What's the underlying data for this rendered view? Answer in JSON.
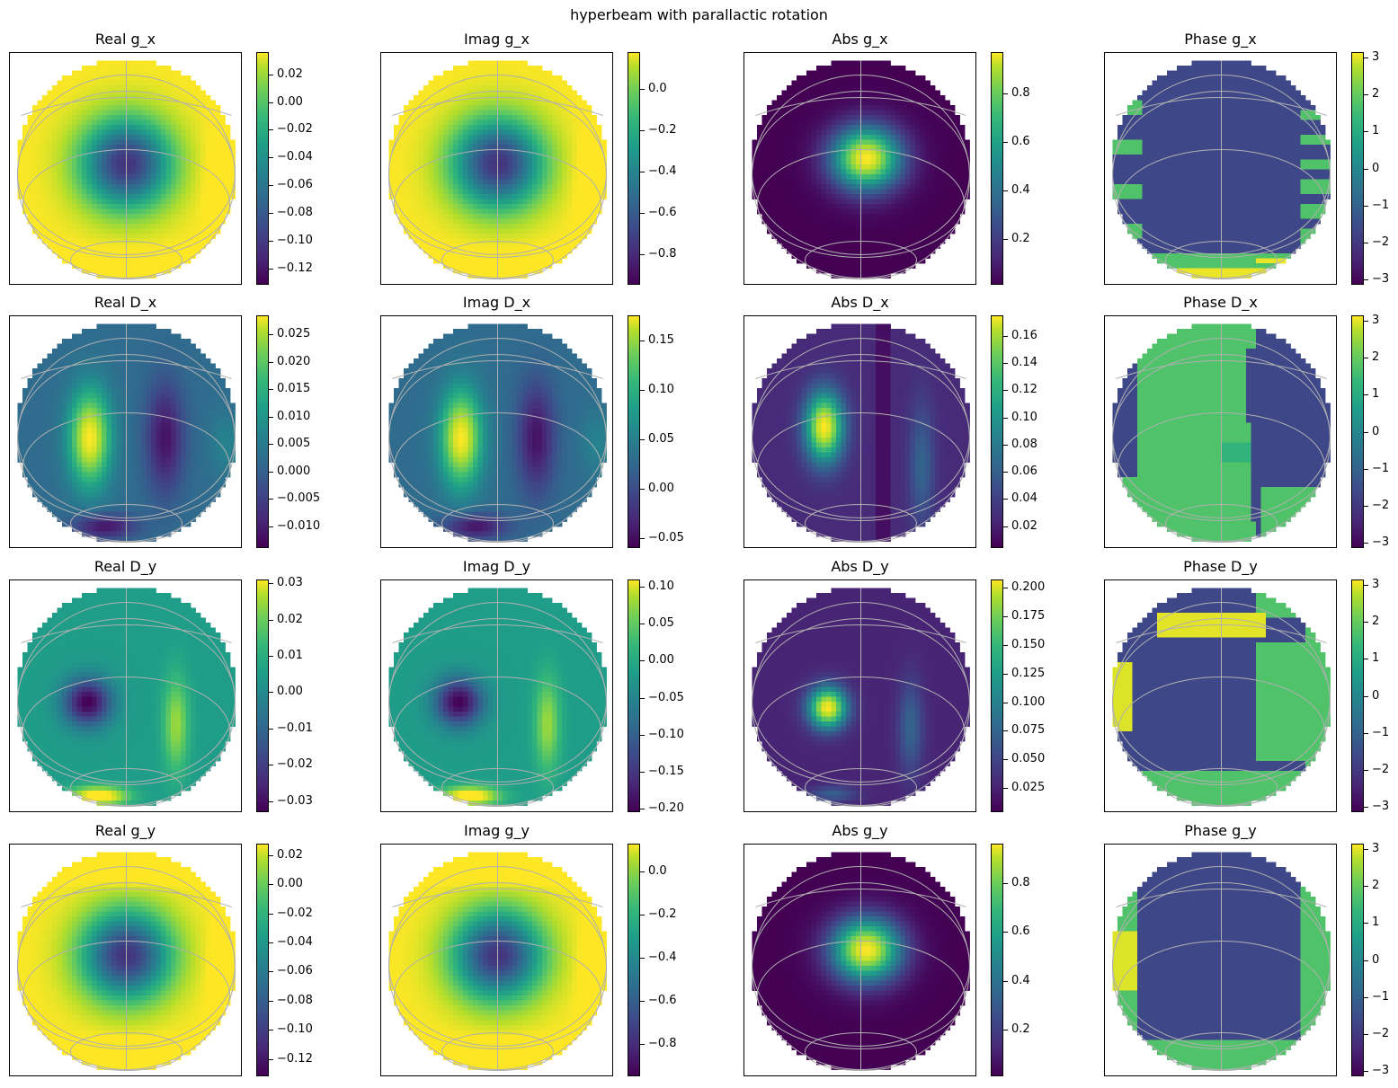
{
  "figure_title": "hyperbeam with parallactic rotation",
  "colormap": "viridis",
  "grid_color": "#b0b0b0",
  "chart_data": [
    {
      "type": "heatmap",
      "title": "Real g_x",
      "row": 0,
      "col": 0,
      "pattern": "donut",
      "clim": [
        -0.132,
        0.036
      ],
      "colorbar_ticks": [
        0.02,
        0.0,
        -0.02,
        -0.04,
        -0.06,
        -0.08,
        -0.1,
        -0.12
      ],
      "tick_labels": [
        "0.02",
        "0.00",
        "−0.02",
        "−0.04",
        "−0.06",
        "−0.08",
        "−0.10",
        "−0.12"
      ]
    },
    {
      "type": "heatmap",
      "title": "Imag g_x",
      "row": 0,
      "col": 1,
      "pattern": "donut",
      "clim": [
        -0.95,
        0.18
      ],
      "colorbar_ticks": [
        0.0,
        -0.2,
        -0.4,
        -0.6,
        -0.8
      ],
      "tick_labels": [
        "0.0",
        "−0.2",
        "−0.4",
        "−0.6",
        "−0.8"
      ]
    },
    {
      "type": "heatmap",
      "title": "Abs g_x",
      "row": 0,
      "col": 2,
      "pattern": "peak",
      "clim": [
        0.01,
        0.97
      ],
      "colorbar_ticks": [
        0.8,
        0.6,
        0.4,
        0.2
      ],
      "tick_labels": [
        "0.8",
        "0.6",
        "0.4",
        "0.2"
      ]
    },
    {
      "type": "heatmap",
      "title": "Phase g_x",
      "row": 0,
      "col": 3,
      "pattern": "phase_g",
      "clim": [
        -3.14,
        3.14
      ],
      "colorbar_ticks": [
        3,
        2,
        1,
        0,
        -1,
        -2,
        -3
      ],
      "tick_labels": [
        "3",
        "2",
        "1",
        "0",
        "−1",
        "−2",
        "−3"
      ]
    },
    {
      "type": "heatmap",
      "title": "Real D_x",
      "row": 1,
      "col": 0,
      "pattern": "dleft",
      "clim": [
        -0.014,
        0.0285
      ],
      "colorbar_ticks": [
        0.025,
        0.02,
        0.015,
        0.01,
        0.005,
        0.0,
        -0.005,
        -0.01
      ],
      "tick_labels": [
        "0.025",
        "0.020",
        "0.015",
        "0.010",
        "0.005",
        "0.000",
        "−0.005",
        "−0.010"
      ]
    },
    {
      "type": "heatmap",
      "title": "Imag D_x",
      "row": 1,
      "col": 1,
      "pattern": "dleft",
      "clim": [
        -0.06,
        0.175
      ],
      "colorbar_ticks": [
        0.15,
        0.1,
        0.05,
        0.0,
        -0.05
      ],
      "tick_labels": [
        "0.15",
        "0.10",
        "0.05",
        "0.00",
        "−0.05"
      ]
    },
    {
      "type": "heatmap",
      "title": "Abs D_x",
      "row": 1,
      "col": 2,
      "pattern": "absd",
      "clim": [
        0.004,
        0.175
      ],
      "colorbar_ticks": [
        0.16,
        0.14,
        0.12,
        0.1,
        0.08,
        0.06,
        0.04,
        0.02
      ],
      "tick_labels": [
        "0.16",
        "0.14",
        "0.12",
        "0.10",
        "0.08",
        "0.06",
        "0.04",
        "0.02"
      ]
    },
    {
      "type": "heatmap",
      "title": "Phase D_x",
      "row": 1,
      "col": 3,
      "pattern": "phase_dx",
      "clim": [
        -3.14,
        3.14
      ],
      "colorbar_ticks": [
        3,
        2,
        1,
        0,
        -1,
        -2,
        -3
      ],
      "tick_labels": [
        "3",
        "2",
        "1",
        "0",
        "−1",
        "−2",
        "−3"
      ]
    },
    {
      "type": "heatmap",
      "title": "Real D_y",
      "row": 2,
      "col": 0,
      "pattern": "dy",
      "clim": [
        -0.033,
        0.031
      ],
      "colorbar_ticks": [
        0.03,
        0.02,
        0.01,
        0.0,
        -0.01,
        -0.02,
        -0.03
      ],
      "tick_labels": [
        "0.03",
        "0.02",
        "0.01",
        "0.00",
        "−0.01",
        "−0.02",
        "−0.03"
      ]
    },
    {
      "type": "heatmap",
      "title": "Imag D_y",
      "row": 2,
      "col": 1,
      "pattern": "dy",
      "clim": [
        -0.205,
        0.11
      ],
      "colorbar_ticks": [
        0.1,
        0.05,
        0.0,
        -0.05,
        -0.1,
        -0.15,
        -0.2
      ],
      "tick_labels": [
        "0.10",
        "0.05",
        "0.00",
        "−0.05",
        "−0.10",
        "−0.15",
        "−0.20"
      ]
    },
    {
      "type": "heatmap",
      "title": "Abs D_y",
      "row": 2,
      "col": 2,
      "pattern": "absdy",
      "clim": [
        0.004,
        0.207
      ],
      "colorbar_ticks": [
        0.2,
        0.175,
        0.15,
        0.125,
        0.1,
        0.075,
        0.05,
        0.025
      ],
      "tick_labels": [
        "0.200",
        "0.175",
        "0.150",
        "0.125",
        "0.100",
        "0.075",
        "0.050",
        "0.025"
      ]
    },
    {
      "type": "heatmap",
      "title": "Phase D_y",
      "row": 2,
      "col": 3,
      "pattern": "phase_dy",
      "clim": [
        -3.14,
        3.14
      ],
      "colorbar_ticks": [
        3,
        2,
        1,
        0,
        -1,
        -2,
        -3
      ],
      "tick_labels": [
        "3",
        "2",
        "1",
        "0",
        "−1",
        "−2",
        "−3"
      ]
    },
    {
      "type": "heatmap",
      "title": "Real g_y",
      "row": 3,
      "col": 0,
      "pattern": "donut_y",
      "clim": [
        -0.132,
        0.028
      ],
      "colorbar_ticks": [
        0.02,
        0.0,
        -0.02,
        -0.04,
        -0.06,
        -0.08,
        -0.1,
        -0.12
      ],
      "tick_labels": [
        "0.02",
        "0.00",
        "−0.02",
        "−0.04",
        "−0.06",
        "−0.08",
        "−0.10",
        "−0.12"
      ]
    },
    {
      "type": "heatmap",
      "title": "Imag g_y",
      "row": 3,
      "col": 1,
      "pattern": "donut_y",
      "clim": [
        -0.95,
        0.13
      ],
      "colorbar_ticks": [
        0.0,
        -0.2,
        -0.4,
        -0.6,
        -0.8
      ],
      "tick_labels": [
        "0.0",
        "−0.2",
        "−0.4",
        "−0.6",
        "−0.8"
      ]
    },
    {
      "type": "heatmap",
      "title": "Abs g_y",
      "row": 3,
      "col": 2,
      "pattern": "peak",
      "clim": [
        0.01,
        0.96
      ],
      "colorbar_ticks": [
        0.8,
        0.6,
        0.4,
        0.2
      ],
      "tick_labels": [
        "0.8",
        "0.6",
        "0.4",
        "0.2"
      ]
    },
    {
      "type": "heatmap",
      "title": "Phase g_y",
      "row": 3,
      "col": 3,
      "pattern": "phase_gy",
      "clim": [
        -3.14,
        3.14
      ],
      "colorbar_ticks": [
        3,
        2,
        1,
        0,
        -1,
        -2,
        -3
      ],
      "tick_labels": [
        "3",
        "2",
        "1",
        "0",
        "−1",
        "−2",
        "−3"
      ]
    }
  ]
}
